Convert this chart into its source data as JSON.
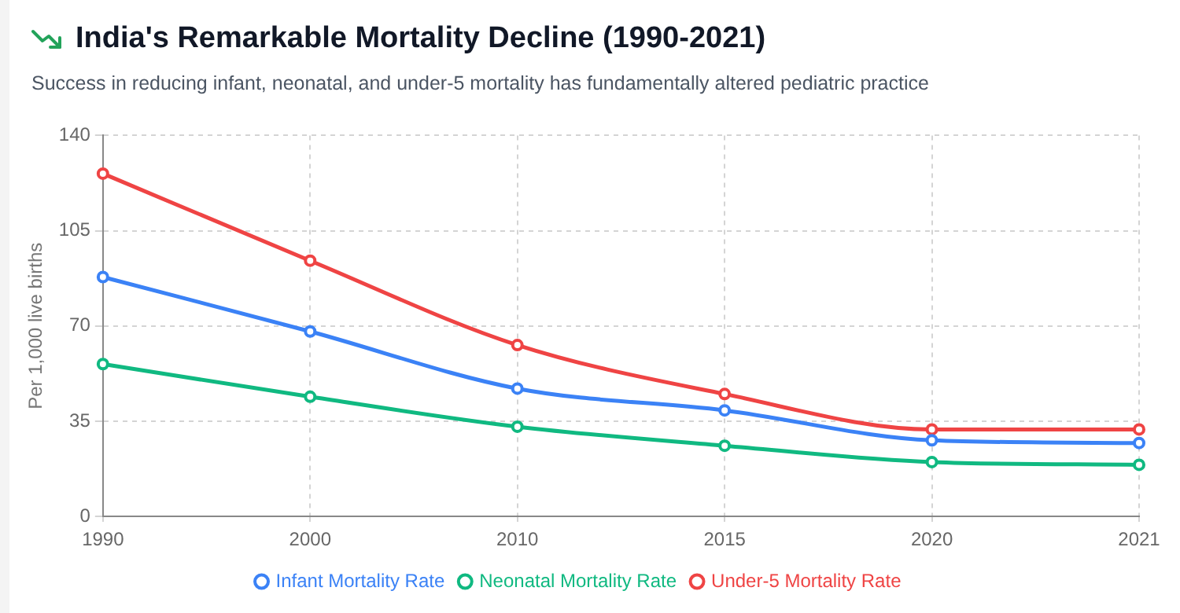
{
  "chart_data": {
    "type": "line",
    "title": "India's Remarkable Mortality Decline (1990-2021)",
    "subtitle": "Success in reducing infant, neonatal, and under-5 mortality has fundamentally altered pediatric practice",
    "ylabel": "Per 1,000 live births",
    "categories": [
      "1990",
      "2000",
      "2010",
      "2015",
      "2020",
      "2021"
    ],
    "series": [
      {
        "name": "Infant Mortality Rate",
        "color": "#3b82f6",
        "values": [
          88,
          68,
          47,
          39,
          28,
          27
        ]
      },
      {
        "name": "Neonatal Mortality Rate",
        "color": "#10b981",
        "values": [
          56,
          44,
          33,
          26,
          20,
          19
        ]
      },
      {
        "name": "Under-5 Mortality Rate",
        "color": "#ef4444",
        "values": [
          126,
          94,
          63,
          45,
          32,
          32
        ]
      }
    ],
    "ylim": [
      0,
      140
    ],
    "yticks": [
      0,
      35,
      70,
      105,
      140
    ],
    "grid": true,
    "legend": "bottom",
    "marker": "circle",
    "line_style": "solid"
  }
}
